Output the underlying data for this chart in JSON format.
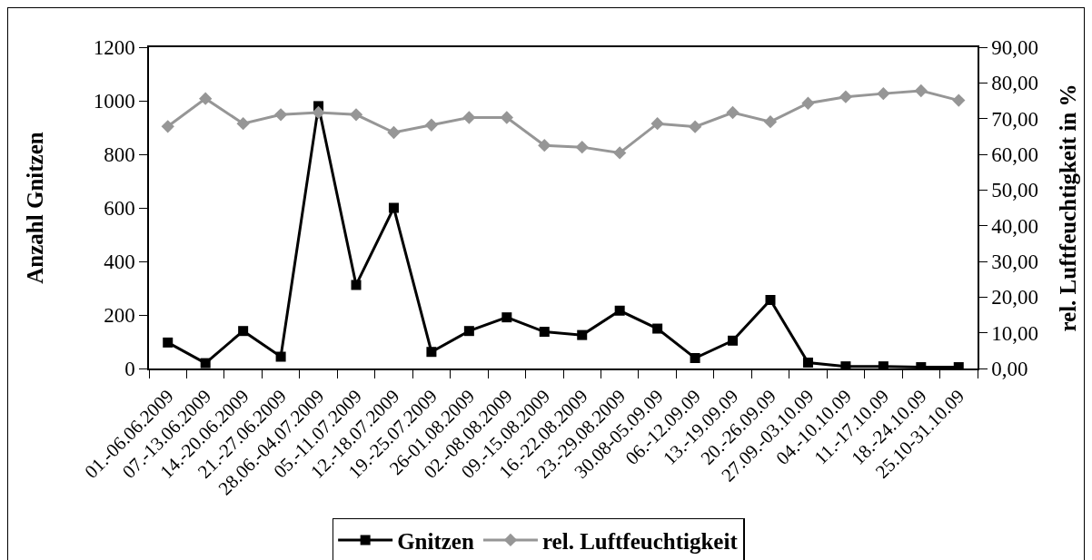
{
  "chart_data": {
    "type": "line",
    "ylabel": "Anzahl Gnitzen",
    "y2label": "rel. Luftfeuchtigkeit in %",
    "categories": [
      "01.-06.06.2009",
      "07.-13.06.2009",
      "14.-20.06.2009",
      "21.-27.06.2009",
      "28.06.-04.07.2009",
      "05.-11.07.2009",
      "12.-18.07.2009",
      "19.-25.07.2009",
      "26-01.08.2009",
      "02.-08.08.2009",
      "09.-15.08.2009",
      "16.-22.08.2009",
      "23.-29.08.2009",
      "30.08-05.09.09",
      "06.-12.09.09",
      "13.-19.09.09",
      "20.-26.09.09",
      "27.09.-03.10.09",
      "04.-10.10.09",
      "11.-17.10.09",
      "18.-24.10.09",
      "25.10-31.10.09"
    ],
    "series": [
      {
        "name": "Gnitzen",
        "color": "#000000",
        "marker": "square",
        "values": [
          97,
          20,
          140,
          44,
          980,
          312,
          600,
          62,
          140,
          191,
          137,
          125,
          216,
          149,
          39,
          104,
          256,
          22,
          8,
          8,
          5,
          5
        ]
      },
      {
        "name": "rel. Luftfeuchtigkeit",
        "color": "#969696",
        "marker": "diamond",
        "axis": "y2",
        "values": [
          67.8,
          75.6,
          68.6,
          71.1,
          71.7,
          71.1,
          66.1,
          68.2,
          70.3,
          70.3,
          62.5,
          62.0,
          60.4,
          68.6,
          67.7,
          71.7,
          69.1,
          74.3,
          76.1,
          77.0,
          77.8,
          75.1
        ]
      }
    ],
    "ylim": [
      0,
      1200
    ],
    "yticks": [
      0,
      200,
      400,
      600,
      800,
      1000,
      1200
    ],
    "y2lim": [
      0,
      90
    ],
    "y2ticks": [
      {
        "value": 0,
        "label": "0,00"
      },
      {
        "value": 10,
        "label": "10,00"
      },
      {
        "value": 20,
        "label": "20,00"
      },
      {
        "value": 30,
        "label": "30,00"
      },
      {
        "value": 40,
        "label": "40,00"
      },
      {
        "value": 50,
        "label": "50,00"
      },
      {
        "value": 60,
        "label": "60,00"
      },
      {
        "value": 70,
        "label": "70,00"
      },
      {
        "value": 80,
        "label": "80,00"
      },
      {
        "value": 90,
        "label": "90,00"
      }
    ],
    "line_style": "solid",
    "legend": "bottom"
  }
}
